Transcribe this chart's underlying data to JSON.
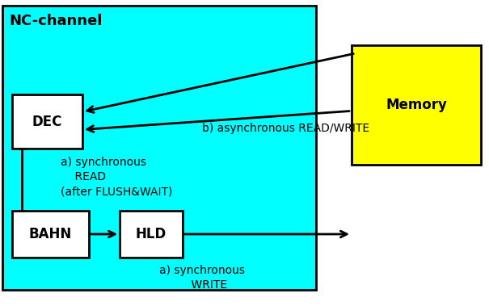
{
  "bg_color": "#ffffff",
  "nc_channel_bg": "#00ffff",
  "nc_channel_label": "NC-channel",
  "memory_bg": "#ffff00",
  "memory_label": "Memory",
  "font_size_title": 13,
  "font_size_box": 12,
  "font_size_label": 10,
  "label_async": "b) asynchronous READ/WRITE",
  "label_sync_read": "a) synchronous\n    READ\n(after FLUSH&WAIT)",
  "label_sync_write": "a) synchronous\n    WRITE"
}
